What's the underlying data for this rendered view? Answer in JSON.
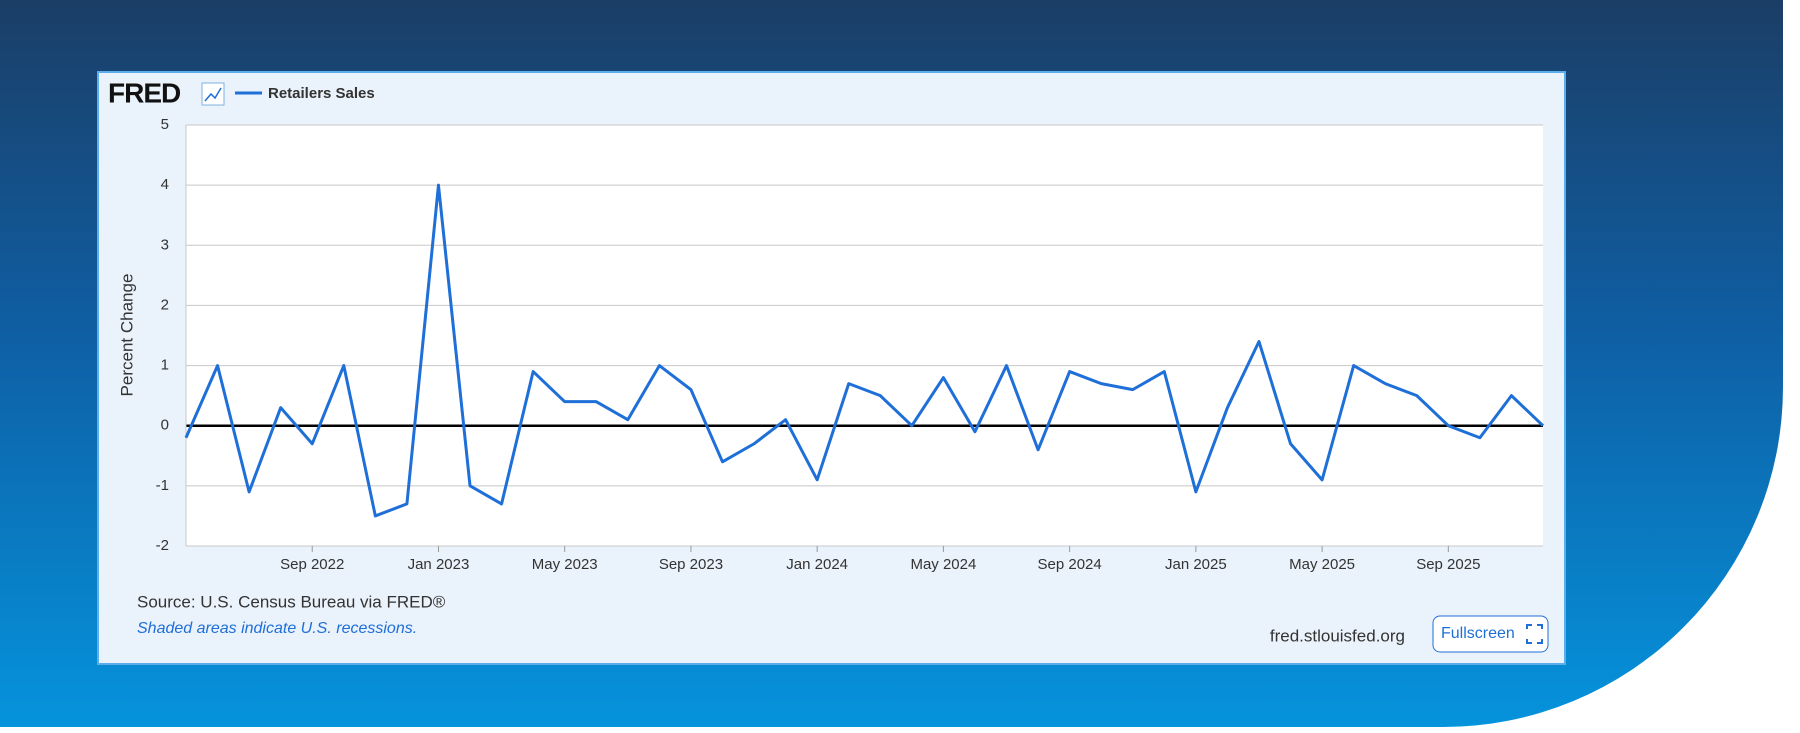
{
  "logo": "FRED",
  "footer": {
    "source": "Source: U.S. Census Bureau via FRED®",
    "note": "Shaded areas indicate U.S. recessions.",
    "website": "fred.stlouisfed.org",
    "button": "Fullscreen"
  },
  "chart_data": {
    "type": "line",
    "y_label": "Percent Change",
    "x": [
      "2022-05",
      "2022-06",
      "2022-07",
      "2022-08",
      "2022-09",
      "2022-10",
      "2022-11",
      "2022-12",
      "2023-01",
      "2023-02",
      "2023-03",
      "2023-04",
      "2023-05",
      "2023-06",
      "2023-07",
      "2023-08",
      "2023-09",
      "2023-10",
      "2023-11",
      "2023-12",
      "2024-01",
      "2024-02",
      "2024-03",
      "2024-04",
      "2024-05",
      "2024-06",
      "2024-07",
      "2024-08",
      "2024-09",
      "2024-10",
      "2024-11",
      "2024-12",
      "2025-01",
      "2025-02",
      "2025-03",
      "2025-04",
      "2025-05",
      "2025-06",
      "2025-07",
      "2025-08",
      "2025-09",
      "2025-10",
      "2025-11",
      "2025-12"
    ],
    "series": [
      {
        "name": "Retailers Sales",
        "color": "#1f6fd8",
        "values": [
          -0.2,
          1.0,
          -1.1,
          0.3,
          -0.3,
          1.0,
          -1.5,
          -1.3,
          4.0,
          -1.0,
          -1.3,
          0.9,
          0.4,
          0.4,
          0.1,
          1.0,
          0.6,
          -0.6,
          -0.3,
          0.1,
          -0.9,
          0.7,
          0.5,
          0.0,
          0.8,
          -0.1,
          1.0,
          -0.4,
          0.9,
          0.7,
          0.6,
          0.9,
          -1.1,
          0.3,
          1.4,
          -0.3,
          -0.9,
          1.0,
          0.7,
          0.5,
          0.0,
          -0.2,
          0.5,
          0.0
        ]
      }
    ],
    "ylim": [
      -2,
      5
    ],
    "yticks": [
      -2,
      -1,
      0,
      1,
      2,
      3,
      4,
      5
    ],
    "xticks": [
      {
        "value": "2022-09",
        "label": "Sep 2022"
      },
      {
        "value": "2023-01",
        "label": "Jan 2023"
      },
      {
        "value": "2023-05",
        "label": "May 2023"
      },
      {
        "value": "2023-09",
        "label": "Sep 2023"
      },
      {
        "value": "2024-01",
        "label": "Jan 2024"
      },
      {
        "value": "2024-05",
        "label": "May 2024"
      },
      {
        "value": "2024-09",
        "label": "Sep 2024"
      },
      {
        "value": "2025-01",
        "label": "Jan 2025"
      },
      {
        "value": "2025-05",
        "label": "May 2025"
      },
      {
        "value": "2025-09",
        "label": "Sep 2025"
      }
    ],
    "grid": true
  }
}
